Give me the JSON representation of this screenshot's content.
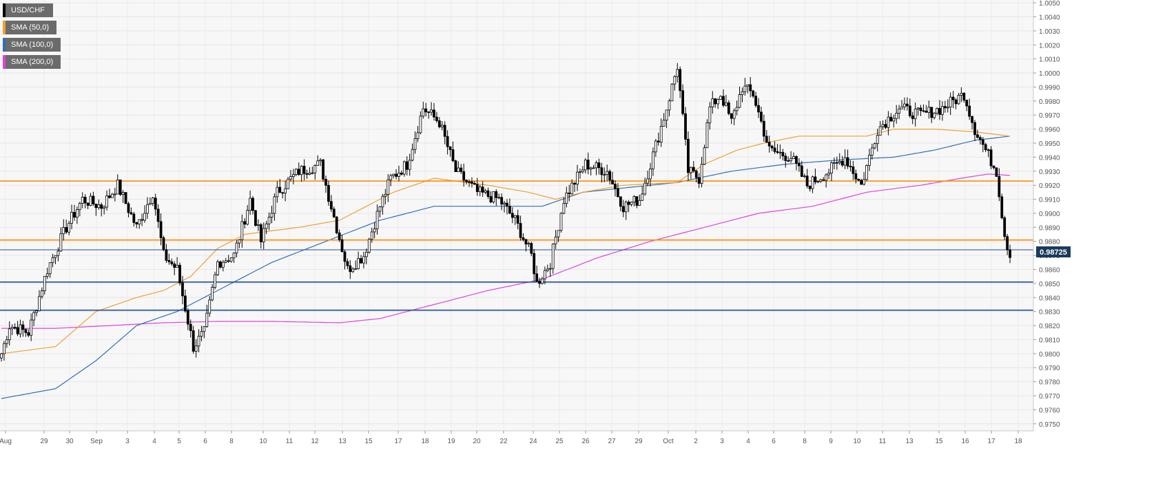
{
  "chart_data": {
    "type": "candlestick",
    "instrument": "USD/CHF",
    "legend": [
      {
        "label": "USD/CHF",
        "color": "#000000"
      },
      {
        "label": "SMA (50,0)",
        "color": "#f0a030"
      },
      {
        "label": "SMA (100,0)",
        "color": "#2f6fb8"
      },
      {
        "label": "SMA (200,0)",
        "color": "#e040e0"
      }
    ],
    "ylim": [
      0.9745,
      1.0052
    ],
    "y_ticks": [
      "0.9750",
      "0.9760",
      "0.9770",
      "0.9780",
      "0.9790",
      "0.9800",
      "0.9810",
      "0.9820",
      "0.9830",
      "0.9840",
      "0.9850",
      "0.9860",
      "0.9870",
      "0.9880",
      "0.9890",
      "0.9900",
      "0.9910",
      "0.9920",
      "0.9930",
      "0.9940",
      "0.9950",
      "0.9960",
      "0.9970",
      "0.9980",
      "0.9990",
      "1.0000",
      "1.0010",
      "1.0020",
      "1.0030",
      "1.0040",
      "1.0050"
    ],
    "x_ticks": [
      "Aug",
      "29",
      "30",
      "Sep",
      "3",
      "4",
      "5",
      "6",
      "8",
      "10",
      "11",
      "12",
      "13",
      "15",
      "17",
      "18",
      "19",
      "20",
      "22",
      "24",
      "25",
      "26",
      "27",
      "29",
      "Oct",
      "2",
      "3",
      "4",
      "6",
      "8",
      "9",
      "10",
      "11",
      "13",
      "15",
      "16",
      "17",
      "18"
    ],
    "last_price": "0.98725",
    "price_lines": [
      {
        "value": 0.9923,
        "color": "#ff8c00"
      },
      {
        "value": 0.9881,
        "color": "#ff8c00"
      },
      {
        "value": 0.9851,
        "color": "#1f4e9c"
      },
      {
        "value": 0.9831,
        "color": "#1f4e9c"
      },
      {
        "value": 0.9874,
        "color": "#1f4e9c"
      }
    ],
    "price_anchors": [
      [
        0,
        0.98
      ],
      [
        3,
        0.982
      ],
      [
        10,
        0.9815
      ],
      [
        17,
        0.986
      ],
      [
        24,
        0.989
      ],
      [
        30,
        0.991
      ],
      [
        37,
        0.9905
      ],
      [
        43,
        0.992
      ],
      [
        50,
        0.989
      ],
      [
        56,
        0.9915
      ],
      [
        60,
        0.987
      ],
      [
        65,
        0.986
      ],
      [
        71,
        0.9805
      ],
      [
        75,
        0.9815
      ],
      [
        80,
        0.9865
      ],
      [
        86,
        0.987
      ],
      [
        92,
        0.991
      ],
      [
        96,
        0.988
      ],
      [
        102,
        0.9915
      ],
      [
        110,
        0.993
      ],
      [
        118,
        0.9935
      ],
      [
        124,
        0.989
      ],
      [
        128,
        0.986
      ],
      [
        134,
        0.987
      ],
      [
        140,
        0.9905
      ],
      [
        144,
        0.9925
      ],
      [
        150,
        0.9935
      ],
      [
        156,
        0.9975
      ],
      [
        162,
        0.9965
      ],
      [
        168,
        0.993
      ],
      [
        176,
        0.9915
      ],
      [
        184,
        0.991
      ],
      [
        190,
        0.9895
      ],
      [
        196,
        0.987
      ],
      [
        198,
        0.985
      ],
      [
        203,
        0.9865
      ],
      [
        208,
        0.991
      ],
      [
        216,
        0.9935
      ],
      [
        224,
        0.993
      ],
      [
        230,
        0.9905
      ],
      [
        236,
        0.991
      ],
      [
        240,
        0.9935
      ],
      [
        246,
        0.9975
      ],
      [
        250,
        1.0005
      ],
      [
        254,
        0.993
      ],
      [
        258,
        0.9925
      ],
      [
        262,
        0.9975
      ],
      [
        266,
        0.9985
      ],
      [
        270,
        0.9965
      ],
      [
        274,
        0.999
      ],
      [
        278,
        0.9985
      ],
      [
        284,
        0.9945
      ],
      [
        292,
        0.994
      ],
      [
        298,
        0.992
      ],
      [
        306,
        0.993
      ],
      [
        312,
        0.994
      ],
      [
        318,
        0.992
      ],
      [
        324,
        0.996
      ],
      [
        332,
        0.9975
      ],
      [
        340,
        0.997
      ],
      [
        348,
        0.9975
      ],
      [
        356,
        0.9985
      ],
      [
        360,
        0.996
      ],
      [
        364,
        0.9945
      ],
      [
        368,
        0.993
      ],
      [
        371,
        0.9885
      ],
      [
        373,
        0.987
      ]
    ],
    "sma_50": [
      [
        0,
        0.98
      ],
      [
        20,
        0.9805
      ],
      [
        35,
        0.983
      ],
      [
        50,
        0.984
      ],
      [
        60,
        0.9845
      ],
      [
        70,
        0.9855
      ],
      [
        80,
        0.9875
      ],
      [
        90,
        0.9885
      ],
      [
        110,
        0.989
      ],
      [
        125,
        0.9895
      ],
      [
        135,
        0.9905
      ],
      [
        145,
        0.9915
      ],
      [
        160,
        0.9925
      ],
      [
        180,
        0.992
      ],
      [
        195,
        0.9915
      ],
      [
        205,
        0.991
      ],
      [
        215,
        0.9915
      ],
      [
        230,
        0.992
      ],
      [
        250,
        0.9922
      ],
      [
        260,
        0.9935
      ],
      [
        272,
        0.9945
      ],
      [
        282,
        0.995
      ],
      [
        295,
        0.9955
      ],
      [
        310,
        0.9955
      ],
      [
        320,
        0.9955
      ],
      [
        330,
        0.996
      ],
      [
        345,
        0.996
      ],
      [
        360,
        0.9958
      ],
      [
        373,
        0.9955
      ]
    ],
    "sma_100": [
      [
        0,
        0.9768
      ],
      [
        20,
        0.9775
      ],
      [
        35,
        0.9795
      ],
      [
        50,
        0.982
      ],
      [
        65,
        0.983
      ],
      [
        80,
        0.9845
      ],
      [
        100,
        0.9865
      ],
      [
        120,
        0.988
      ],
      [
        140,
        0.9895
      ],
      [
        160,
        0.9905
      ],
      [
        180,
        0.9905
      ],
      [
        200,
        0.9905
      ],
      [
        215,
        0.9915
      ],
      [
        230,
        0.9918
      ],
      [
        250,
        0.9922
      ],
      [
        270,
        0.993
      ],
      [
        290,
        0.9935
      ],
      [
        310,
        0.9938
      ],
      [
        330,
        0.994
      ],
      [
        345,
        0.9945
      ],
      [
        360,
        0.9952
      ],
      [
        373,
        0.9955
      ]
    ],
    "sma_200": [
      [
        0,
        0.9818
      ],
      [
        20,
        0.9818
      ],
      [
        40,
        0.982
      ],
      [
        60,
        0.9822
      ],
      [
        80,
        0.9823
      ],
      [
        100,
        0.9823
      ],
      [
        125,
        0.9822
      ],
      [
        140,
        0.9825
      ],
      [
        160,
        0.9835
      ],
      [
        180,
        0.9845
      ],
      [
        200,
        0.9853
      ],
      [
        220,
        0.9868
      ],
      [
        240,
        0.988
      ],
      [
        260,
        0.989
      ],
      [
        280,
        0.99
      ],
      [
        300,
        0.9905
      ],
      [
        320,
        0.9915
      ],
      [
        340,
        0.992
      ],
      [
        355,
        0.9925
      ],
      [
        365,
        0.9928
      ],
      [
        373,
        0.9927
      ]
    ]
  }
}
